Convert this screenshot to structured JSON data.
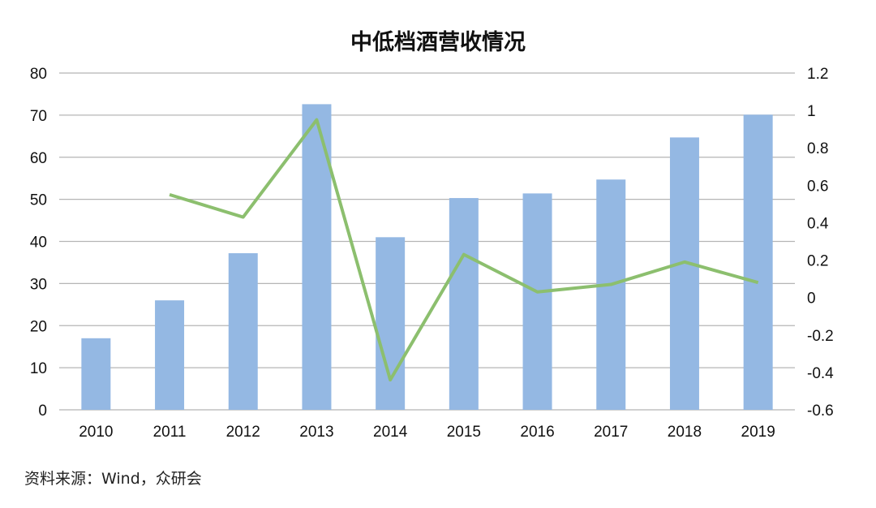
{
  "chart_data": {
    "type": "bar+line",
    "title": "中低档酒营收情况",
    "categories": [
      "2010",
      "2011",
      "2012",
      "2013",
      "2014",
      "2015",
      "2016",
      "2017",
      "2018",
      "2019"
    ],
    "series": [
      {
        "type": "bar",
        "axis": "left",
        "color": "#94b8e3",
        "values": [
          17,
          26,
          37.2,
          72.6,
          41,
          50.3,
          51.4,
          54.7,
          64.7,
          70.1
        ]
      },
      {
        "type": "line",
        "axis": "right",
        "color": "#8cbf6e",
        "values": [
          null,
          0.55,
          0.43,
          0.95,
          -0.44,
          0.23,
          0.03,
          0.07,
          0.19,
          0.08
        ]
      }
    ],
    "y_left": {
      "range": [
        0,
        80
      ],
      "ticks": [
        "0",
        "10",
        "20",
        "30",
        "40",
        "50",
        "60",
        "70",
        "80"
      ]
    },
    "y_right": {
      "range": [
        -0.6,
        1.2
      ],
      "ticks": [
        "-0.6",
        "-0.4",
        "-0.2",
        "0",
        "0.2",
        "0.4",
        "0.6",
        "0.8",
        "1",
        "1.2"
      ]
    },
    "grid": true,
    "legend": "none"
  },
  "source": "资料来源：Wind，众研会"
}
